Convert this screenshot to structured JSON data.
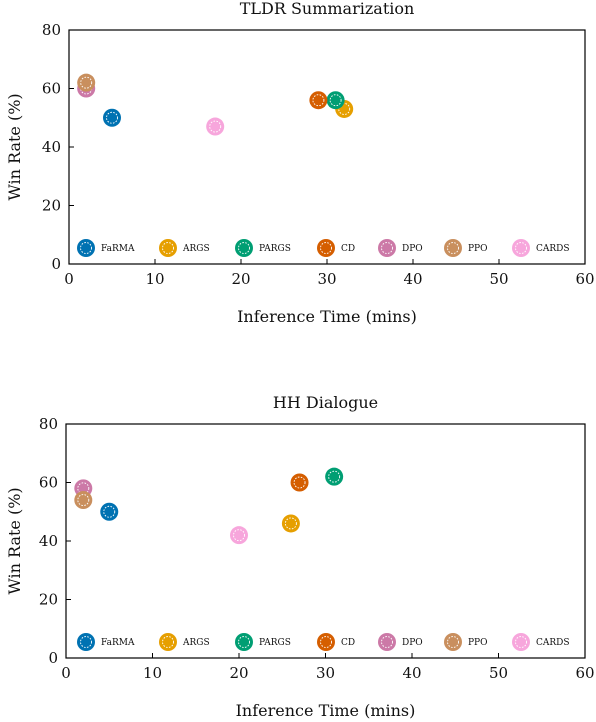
{
  "chart_data": [
    {
      "type": "scatter",
      "title": "TLDR Summarization",
      "xlabel": "Inference Time (mins)",
      "ylabel": "Win Rate (%)",
      "xlim": [
        0,
        60
      ],
      "ylim": [
        0,
        80
      ],
      "xticks": [
        "0",
        "10",
        "20",
        "30",
        "40",
        "50",
        "60"
      ],
      "yticks": [
        "0",
        "20",
        "40",
        "60",
        "80"
      ],
      "grid": false,
      "legend_position": "bottom",
      "series": [
        {
          "name": "FaRMA",
          "color": "#0072b2",
          "x": [
            5
          ],
          "y": [
            50
          ]
        },
        {
          "name": "ARGS",
          "color": "#e69f00",
          "x": [
            32
          ],
          "y": [
            53
          ]
        },
        {
          "name": "PARGS",
          "color": "#009e73",
          "x": [
            31
          ],
          "y": [
            56
          ]
        },
        {
          "name": "CD",
          "color": "#d55e00",
          "x": [
            29
          ],
          "y": [
            56
          ]
        },
        {
          "name": "DPO",
          "color": "#cc79a7",
          "x": [
            2
          ],
          "y": [
            60
          ]
        },
        {
          "name": "PPO",
          "color": "#c98f5e",
          "x": [
            2
          ],
          "y": [
            62
          ]
        },
        {
          "name": "CARDS",
          "color": "#f7a6dc",
          "x": [
            17
          ],
          "y": [
            47
          ]
        }
      ]
    },
    {
      "type": "scatter",
      "title": "HH Dialogue",
      "xlabel": "Inference Time (mins)",
      "ylabel": "Win Rate (%)",
      "xlim": [
        0,
        60
      ],
      "ylim": [
        0,
        80
      ],
      "xticks": [
        "0",
        "10",
        "20",
        "30",
        "40",
        "50",
        "60"
      ],
      "yticks": [
        "0",
        "20",
        "40",
        "60",
        "80"
      ],
      "grid": false,
      "legend_position": "bottom",
      "series": [
        {
          "name": "FaRMA",
          "color": "#0072b2",
          "x": [
            5
          ],
          "y": [
            50
          ]
        },
        {
          "name": "ARGS",
          "color": "#e69f00",
          "x": [
            26
          ],
          "y": [
            46
          ]
        },
        {
          "name": "PARGS",
          "color": "#009e73",
          "x": [
            31
          ],
          "y": [
            62
          ]
        },
        {
          "name": "CD",
          "color": "#d55e00",
          "x": [
            27
          ],
          "y": [
            60
          ]
        },
        {
          "name": "DPO",
          "color": "#cc79a7",
          "x": [
            2
          ],
          "y": [
            58
          ]
        },
        {
          "name": "PPO",
          "color": "#c98f5e",
          "x": [
            2
          ],
          "y": [
            54
          ]
        },
        {
          "name": "CARDS",
          "color": "#f7a6dc",
          "x": [
            20
          ],
          "y": [
            42
          ]
        }
      ]
    }
  ]
}
